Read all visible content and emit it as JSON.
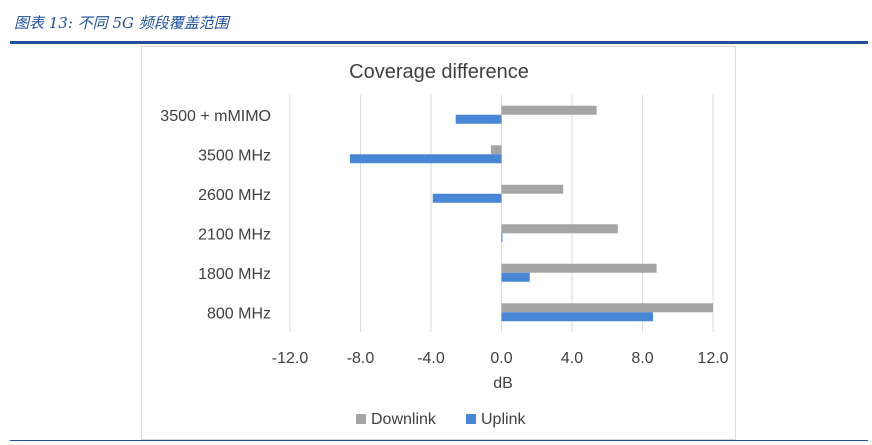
{
  "figure": {
    "caption": "图表 13: 不同 5G 频段覆盖范围"
  },
  "colors": {
    "downlink": "#a5a5a5",
    "uplink": "#4a86d6",
    "grid": "#d9d9d9",
    "caption": "#1f4e9c",
    "text": "#404040"
  },
  "chart_data": {
    "type": "bar",
    "orientation": "horizontal",
    "title": "Coverage difference",
    "xlabel": "dB",
    "ylabel": "",
    "categories": [
      "3500 + mMIMO",
      "3500 MHz",
      "2600 MHz",
      "2100 MHz",
      "1800 MHz",
      "800 MHz"
    ],
    "series": [
      {
        "name": "Downlink",
        "values": [
          5.4,
          -0.6,
          3.5,
          6.6,
          8.8,
          12.0
        ]
      },
      {
        "name": "Uplink",
        "values": [
          -2.6,
          -8.6,
          -3.9,
          0.0,
          1.6,
          8.6
        ]
      }
    ],
    "xlim": [
      -12,
      12
    ],
    "xticks": [
      "-12.0",
      "-8.0",
      "-4.0",
      "0.0",
      "4.0",
      "8.0",
      "12.0"
    ],
    "grid": true,
    "legend_position": "bottom"
  }
}
